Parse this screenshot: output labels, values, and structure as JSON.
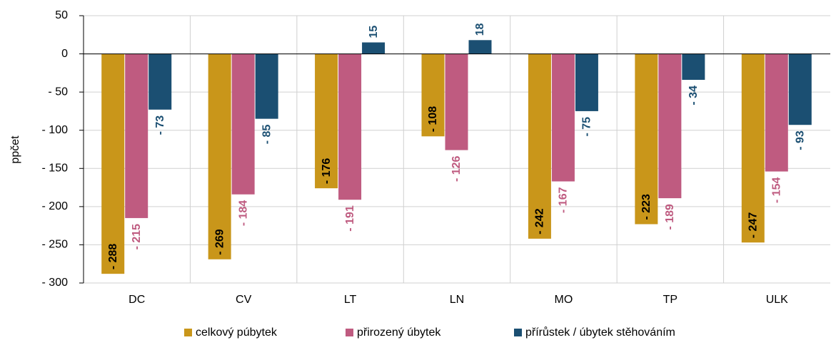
{
  "chart_data": {
    "type": "bar",
    "y_label": "ppčet",
    "categories": [
      "DC",
      "CV",
      "LT",
      "LN",
      "MO",
      "TP",
      "ULK"
    ],
    "series": [
      {
        "name": "celkový púbytek",
        "color": "#c9961a",
        "label_color": "#000000",
        "values": [
          -288,
          -269,
          -176,
          -108,
          -242,
          -223,
          -247
        ],
        "value_labels": [
          "- 288",
          "- 269",
          "- 176",
          "- 108",
          "- 242",
          "- 223",
          "- 247"
        ]
      },
      {
        "name": "přirozený úbytek",
        "color": "#bf5b80",
        "label_color": "#bf5b80",
        "values": [
          -215,
          -184,
          -191,
          -126,
          -167,
          -189,
          -154
        ],
        "value_labels": [
          "- 215",
          "- 184",
          "- 191",
          "- 126",
          "- 167",
          "- 189",
          "- 154"
        ]
      },
      {
        "name": "přírůstek / úbytek stěhováním",
        "color": "#1b4f72",
        "label_color": "#1b4f72",
        "values": [
          -73,
          -85,
          15,
          18,
          -75,
          -34,
          -93
        ],
        "value_labels": [
          "- 73",
          "- 85",
          "15",
          "18",
          "- 75",
          "- 34",
          "- 93"
        ]
      }
    ],
    "ylim": [
      -300,
      50
    ],
    "yticks": [
      {
        "value": -300,
        "label": "- 300"
      },
      {
        "value": -250,
        "label": "- 250"
      },
      {
        "value": -200,
        "label": "- 200"
      },
      {
        "value": -150,
        "label": "- 150"
      },
      {
        "value": -100,
        "label": "- 100"
      },
      {
        "value": -50,
        "label": "- 50"
      },
      0,
      50
    ],
    "grid": true
  }
}
